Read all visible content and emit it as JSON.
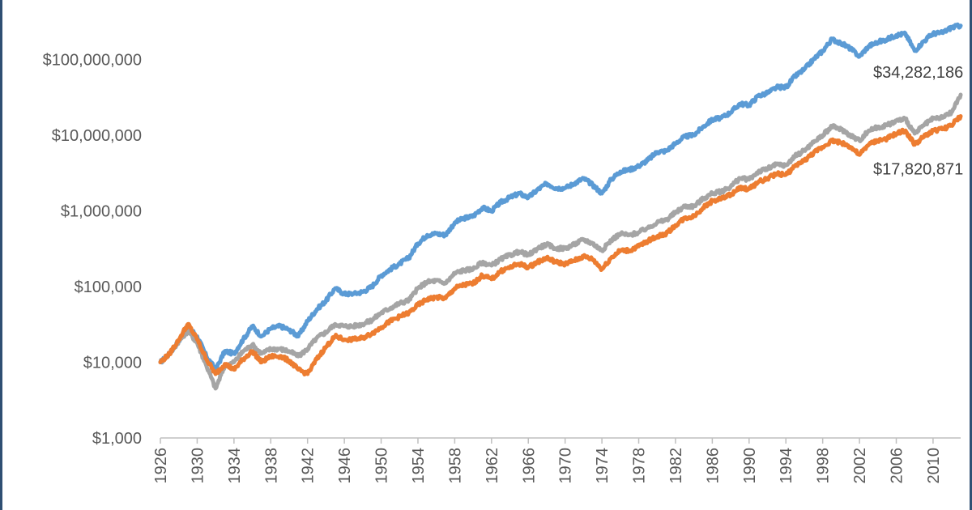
{
  "chart_data": {
    "type": "line",
    "y_scale": "log",
    "ylim": [
      1000,
      600000000
    ],
    "xlim": [
      1926,
      2013
    ],
    "grid": false,
    "legend": "none",
    "y_ticks": [
      {
        "value": 1000,
        "label": "$1,000"
      },
      {
        "value": 10000,
        "label": "$10,000"
      },
      {
        "value": 100000,
        "label": "$100,000"
      },
      {
        "value": 1000000,
        "label": "$1,000,000"
      },
      {
        "value": 10000000,
        "label": "$10,000,000"
      },
      {
        "value": 100000000,
        "label": "$100,000,000"
      }
    ],
    "x_ticks": [
      "1926",
      "1930",
      "1934",
      "1938",
      "1942",
      "1946",
      "1950",
      "1954",
      "1958",
      "1962",
      "1966",
      "1970",
      "1974",
      "1978",
      "1982",
      "1986",
      "1990",
      "1994",
      "1998",
      "2002",
      "2006",
      "2010"
    ],
    "series": [
      {
        "color": "#5b9bd5",
        "x": [
          1926,
          1927,
          1928,
          1929,
          1930,
          1931,
          1932,
          1933,
          1934,
          1935,
          1936,
          1937,
          1938,
          1939,
          1940,
          1941,
          1942,
          1943,
          1944,
          1945,
          1946,
          1947,
          1948,
          1949,
          1950,
          1951,
          1952,
          1953,
          1954,
          1955,
          1956,
          1957,
          1958,
          1959,
          1960,
          1961,
          1962,
          1963,
          1964,
          1965,
          1966,
          1967,
          1968,
          1969,
          1970,
          1971,
          1972,
          1973,
          1974,
          1975,
          1976,
          1977,
          1978,
          1979,
          1980,
          1981,
          1982,
          1983,
          1984,
          1985,
          1986,
          1987,
          1988,
          1989,
          1990,
          1991,
          1992,
          1993,
          1994,
          1995,
          1996,
          1997,
          1998,
          1999,
          2000,
          2001,
          2002,
          2003,
          2004,
          2005,
          2006,
          2007,
          2008,
          2009,
          2010,
          2011,
          2012,
          2013
        ],
        "y": [
          10000,
          13000,
          19000,
          30000,
          22000,
          12000,
          8000,
          14000,
          13000,
          20000,
          30000,
          22000,
          28000,
          30000,
          27000,
          22000,
          35000,
          50000,
          65000,
          95000,
          80000,
          80000,
          85000,
          100000,
          140000,
          170000,
          200000,
          240000,
          370000,
          480000,
          500000,
          480000,
          700000,
          800000,
          850000,
          1100000,
          1000000,
          1300000,
          1500000,
          1700000,
          1500000,
          1900000,
          2300000,
          2000000,
          2000000,
          2300000,
          2700000,
          2200000,
          1700000,
          2600000,
          3300000,
          3500000,
          3900000,
          4700000,
          6000000,
          6200000,
          7800000,
          9600000,
          10000000,
          13000000,
          16000000,
          17000000,
          20000000,
          26000000,
          25000000,
          33000000,
          36000000,
          43000000,
          43000000,
          60000000,
          74000000,
          100000000,
          130000000,
          185000000,
          165000000,
          140000000,
          110000000,
          150000000,
          170000000,
          185000000,
          210000000,
          220000000,
          130000000,
          175000000,
          220000000,
          225000000,
          265000000,
          280000000
        ]
      },
      {
        "color": "#a5a5a5",
        "x": [
          1926,
          1927,
          1928,
          1929,
          1930,
          1931,
          1932,
          1933,
          1934,
          1935,
          1936,
          1937,
          1938,
          1939,
          1940,
          1941,
          1942,
          1943,
          1944,
          1945,
          1946,
          1947,
          1948,
          1949,
          1950,
          1951,
          1952,
          1953,
          1954,
          1955,
          1956,
          1957,
          1958,
          1959,
          1960,
          1961,
          1962,
          1963,
          1964,
          1965,
          1966,
          1967,
          1968,
          1969,
          1970,
          1971,
          1972,
          1973,
          1974,
          1975,
          1976,
          1977,
          1978,
          1979,
          1980,
          1981,
          1982,
          1983,
          1984,
          1985,
          1986,
          1987,
          1988,
          1989,
          1990,
          1991,
          1992,
          1993,
          1994,
          1995,
          1996,
          1997,
          1998,
          1999,
          2000,
          2001,
          2002,
          2003,
          2004,
          2005,
          2006,
          2007,
          2008,
          2009,
          2010,
          2011,
          2012,
          2013
        ],
        "y": [
          10000,
          13000,
          19000,
          26000,
          18000,
          9000,
          4500,
          9000,
          10000,
          14000,
          17000,
          13000,
          15000,
          15000,
          14000,
          12000,
          15000,
          21000,
          25000,
          32000,
          30000,
          30000,
          32000,
          36000,
          45000,
          52000,
          60000,
          66000,
          95000,
          115000,
          120000,
          110000,
          150000,
          165000,
          170000,
          210000,
          190000,
          230000,
          260000,
          290000,
          260000,
          320000,
          360000,
          320000,
          320000,
          360000,
          420000,
          370000,
          300000,
          410000,
          500000,
          480000,
          520000,
          600000,
          700000,
          760000,
          950000,
          1150000,
          1150000,
          1450000,
          1700000,
          1800000,
          2100000,
          2700000,
          2600000,
          3300000,
          3600000,
          4100000,
          4000000,
          5300000,
          6300000,
          8000000,
          10000000,
          13000000,
          12000000,
          10000000,
          8500000,
          11500000,
          12700000,
          13500000,
          15500000,
          16500000,
          10500000,
          13500000,
          16500000,
          17000000,
          20000000,
          34282186
        ]
      },
      {
        "color": "#ed7d31",
        "x": [
          1926,
          1927,
          1928,
          1929,
          1930,
          1931,
          1932,
          1933,
          1934,
          1935,
          1936,
          1937,
          1938,
          1939,
          1940,
          1941,
          1942,
          1943,
          1944,
          1945,
          1946,
          1947,
          1948,
          1949,
          1950,
          1951,
          1952,
          1953,
          1954,
          1955,
          1956,
          1957,
          1958,
          1959,
          1960,
          1961,
          1962,
          1963,
          1964,
          1965,
          1966,
          1967,
          1968,
          1969,
          1970,
          1971,
          1972,
          1973,
          1974,
          1975,
          1976,
          1977,
          1978,
          1979,
          1980,
          1981,
          1982,
          1983,
          1984,
          1985,
          1986,
          1987,
          1988,
          1989,
          1990,
          1991,
          1992,
          1993,
          1994,
          1995,
          1996,
          1997,
          1998,
          1999,
          2000,
          2001,
          2002,
          2003,
          2004,
          2005,
          2006,
          2007,
          2008,
          2009,
          2010,
          2011,
          2012,
          2013
        ],
        "y": [
          10000,
          13000,
          20000,
          32000,
          20000,
          11000,
          7000,
          9500,
          8000,
          11000,
          14000,
          10000,
          12000,
          12000,
          10500,
          8000,
          7000,
          11000,
          16000,
          22000,
          20000,
          20000,
          21000,
          24000,
          29000,
          35000,
          40000,
          45000,
          57000,
          68000,
          72000,
          70000,
          95000,
          105000,
          110000,
          140000,
          125000,
          160000,
          180000,
          200000,
          180000,
          210000,
          240000,
          210000,
          200000,
          220000,
          250000,
          230000,
          170000,
          240000,
          300000,
          300000,
          340000,
          400000,
          460000,
          500000,
          650000,
          800000,
          850000,
          1100000,
          1350000,
          1450000,
          1650000,
          2000000,
          1950000,
          2400000,
          2700000,
          3100000,
          3000000,
          3900000,
          4600000,
          5800000,
          7000000,
          8500000,
          8000000,
          7000000,
          5500000,
          7500000,
          8500000,
          9000000,
          10500000,
          11500000,
          7500000,
          9500000,
          11500000,
          12000000,
          13500000,
          17820871
        ]
      }
    ],
    "annotations": [
      {
        "text": "$34,282,186",
        "series": 1,
        "value": 34282186
      },
      {
        "text": "$17,820,871",
        "series": 2,
        "value": 17820871
      }
    ]
  }
}
